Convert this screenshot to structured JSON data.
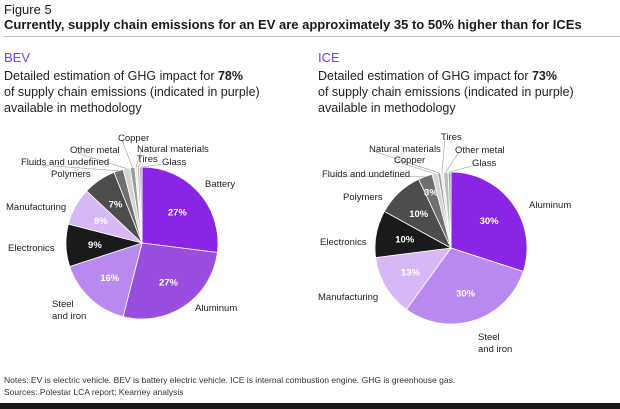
{
  "figure_label": "Figure 5",
  "title": "Currently, supply chain emissions for an EV are approximately 35 to 50% higher than for ICEs",
  "notes": "Notes: EV is electric vehicle. BEV is battery electric vehicle. ICE is internal combustion engine. GHG is greenhouse gas.",
  "sources": "Sources: Polestar LCA report; Kearney analysis",
  "panels": [
    {
      "code": "BEV",
      "desc_prefix": "Detailed estimation of GHG impact for ",
      "desc_pct": "78%",
      "desc_line2": "of supply chain emissions (indicated in purple)",
      "desc_line3": "available in methodology"
    },
    {
      "code": "ICE",
      "desc_prefix": "Detailed estimation of GHG impact for ",
      "desc_pct": "73%",
      "desc_line2": "of supply chain emissions (indicated in purple)",
      "desc_line3": "available in methodology"
    }
  ],
  "colors": {
    "accent": "#7b3fe4",
    "dark": "#1a1a1a",
    "grey_dark": "#555555",
    "grey_light": "#d9d9d9"
  },
  "chart_data": [
    {
      "type": "pie",
      "title": "BEV",
      "slices": [
        {
          "name": "Battery",
          "value": 27,
          "label": "27%",
          "color": "#8a25e6"
        },
        {
          "name": "Aluminum",
          "value": 27,
          "label": "27%",
          "color": "#9a4ee0"
        },
        {
          "name": "Steel and iron",
          "value": 16,
          "label": "16%",
          "color": "#b88af0"
        },
        {
          "name": "Electronics",
          "value": 9,
          "label": "9%",
          "color": "#1a1a1a"
        },
        {
          "name": "Manufacturing",
          "value": 8,
          "label": "8%",
          "color": "#d7b8f6"
        },
        {
          "name": "Polymers",
          "value": 7,
          "label": "7%",
          "color": "#4d4d4d"
        },
        {
          "name": "Fluids and undefined",
          "value": 2,
          "label": "",
          "color": "#707070"
        },
        {
          "name": "Other metal",
          "value": 1.5,
          "label": "",
          "color": "#d4d4d4"
        },
        {
          "name": "Copper",
          "value": 1,
          "label": "",
          "color": "#9a9a9a"
        },
        {
          "name": "Natural materials",
          "value": 0.5,
          "label": "",
          "color": "#e8e8e8"
        },
        {
          "name": "Tires",
          "value": 0.5,
          "label": "",
          "color": "#bdbdbd"
        },
        {
          "name": "Glass",
          "value": 0.5,
          "label": "",
          "color": "#a8a8a8"
        }
      ]
    },
    {
      "type": "pie",
      "title": "ICE",
      "slices": [
        {
          "name": "Aluminum",
          "value": 30,
          "label": "30%",
          "color": "#8a25e6"
        },
        {
          "name": "Steel and iron",
          "value": 30,
          "label": "30%",
          "color": "#b88af0"
        },
        {
          "name": "Manufacturing",
          "value": 13,
          "label": "13%",
          "color": "#d7b8f6"
        },
        {
          "name": "Electronics",
          "value": 10,
          "label": "10%",
          "color": "#1a1a1a"
        },
        {
          "name": "Polymers",
          "value": 10,
          "label": "10%",
          "color": "#4d4d4d"
        },
        {
          "name": "Fluids and undefined",
          "value": 3,
          "label": "3%",
          "color": "#707070"
        },
        {
          "name": "Copper",
          "value": 1.2,
          "label": "",
          "color": "#d4d4d4"
        },
        {
          "name": "Natural materials",
          "value": 0.6,
          "label": "",
          "color": "#9a9a9a"
        },
        {
          "name": "Tires",
          "value": 0.6,
          "label": "",
          "color": "#e8e8e8"
        },
        {
          "name": "Other metal",
          "value": 1,
          "label": "",
          "color": "#bdbdbd"
        },
        {
          "name": "Glass",
          "value": 0.6,
          "label": "",
          "color": "#a8a8a8"
        }
      ]
    }
  ]
}
